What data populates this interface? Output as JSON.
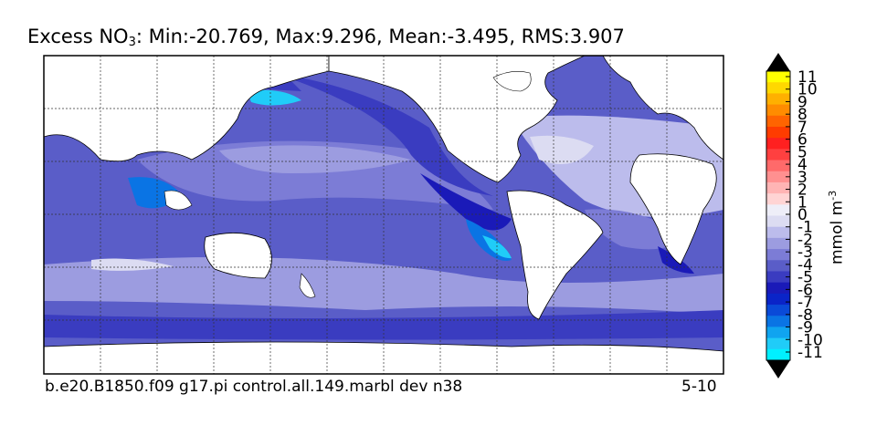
{
  "map": {
    "title_prefix": "Excess NO",
    "title_sub": "3",
    "title_stats": ": Min:-20.769, Max:9.296, Mean:-3.495, RMS:3.907",
    "footer_left": "b.e20.B1850.f09 g17.pi control.all.149.marbl dev n38",
    "footer_right": "5-10",
    "ocean_base_color": "#5a5dc8",
    "land_color": "#ffffff"
  },
  "colorbar": {
    "unit_base": "mmol m",
    "unit_exp": "-3",
    "ticks": [
      "11",
      "10",
      "9",
      "8",
      "7",
      "6",
      "5",
      "4",
      "3",
      "2",
      "1",
      "0",
      "-1",
      "-2",
      "-3",
      "-4",
      "-5",
      "-6",
      "-7",
      "-8",
      "-9",
      "-10",
      "-11"
    ],
    "colors_top_to_bottom": [
      "#ffff00",
      "#ffd800",
      "#ffb000",
      "#ff8c00",
      "#ff6400",
      "#ff3c00",
      "#ff2020",
      "#ff4040",
      "#ff6a6a",
      "#ff9090",
      "#ffb4b4",
      "#ffd4d4",
      "#eeeef8",
      "#dcdcf2",
      "#bcbcec",
      "#9c9ce0",
      "#7c7cd6",
      "#5a5dc8",
      "#3a3cc0",
      "#1a1ab8",
      "#0a24c8",
      "#0a4ad8",
      "#0a74e4",
      "#10a4f0",
      "#20ccf8",
      "#00f0ff"
    ],
    "over_color": "#000000",
    "under_color": "#000000"
  }
}
